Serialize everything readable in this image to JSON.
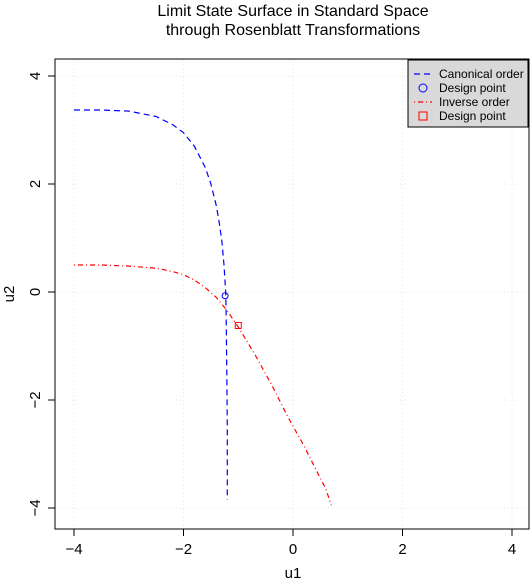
{
  "chart_data": {
    "type": "line",
    "title": [
      "Limit State Surface in Standard Space",
      "through Rosenblatt Transformations"
    ],
    "xlabel": "u1",
    "ylabel": "u2",
    "xlim": [
      -4,
      4
    ],
    "ylim": [
      -4,
      4
    ],
    "xticks": [
      -4,
      -2,
      0,
      2,
      4
    ],
    "yticks": [
      -4,
      -2,
      0,
      2,
      4
    ],
    "grid": true,
    "legend_position": "top-right",
    "series": [
      {
        "name": "Canonical order",
        "color": "#0000ff",
        "dash": "dashed",
        "x": [
          -4.0,
          -3.5,
          -3.0,
          -2.5,
          -2.2,
          -2.0,
          -1.8,
          -1.6,
          -1.5,
          -1.4,
          -1.35,
          -1.3,
          -1.26,
          -1.23,
          -1.22,
          -1.21,
          -1.2,
          -1.2
        ],
        "y": [
          3.37,
          3.37,
          3.35,
          3.25,
          3.1,
          2.95,
          2.7,
          2.3,
          2.0,
          1.6,
          1.3,
          0.95,
          0.5,
          0.0,
          -0.5,
          -1.5,
          -2.5,
          -3.85
        ]
      },
      {
        "name": "Inverse order",
        "color": "#ff0000",
        "dash": "dotdash",
        "x": [
          -4.0,
          -3.5,
          -3.0,
          -2.5,
          -2.2,
          -2.0,
          -1.8,
          -1.6,
          -1.4,
          -1.2,
          -1.0,
          -0.7,
          -0.4,
          -0.1,
          0.2,
          0.45,
          0.6,
          0.7
        ],
        "y": [
          0.5,
          0.5,
          0.48,
          0.44,
          0.38,
          0.32,
          0.22,
          0.08,
          -0.1,
          -0.35,
          -0.65,
          -1.15,
          -1.7,
          -2.3,
          -2.85,
          -3.35,
          -3.65,
          -3.95
        ]
      }
    ],
    "design_points": [
      {
        "series": "Canonical order",
        "x": -1.24,
        "y": -0.07,
        "marker": "circle",
        "color": "#0000ff"
      },
      {
        "series": "Inverse order",
        "x": -1.0,
        "y": -0.62,
        "marker": "square",
        "color": "#ff0000"
      }
    ],
    "legend": [
      {
        "label": "Canonical order",
        "type": "line",
        "dash": "dashed",
        "color": "#0000ff"
      },
      {
        "label": "Design point",
        "type": "marker",
        "marker": "circle",
        "color": "#0000ff"
      },
      {
        "label": "Inverse order",
        "type": "line",
        "dash": "dotdash",
        "color": "#ff0000"
      },
      {
        "label": "Design point",
        "type": "marker",
        "marker": "square",
        "color": "#ff0000"
      }
    ]
  }
}
